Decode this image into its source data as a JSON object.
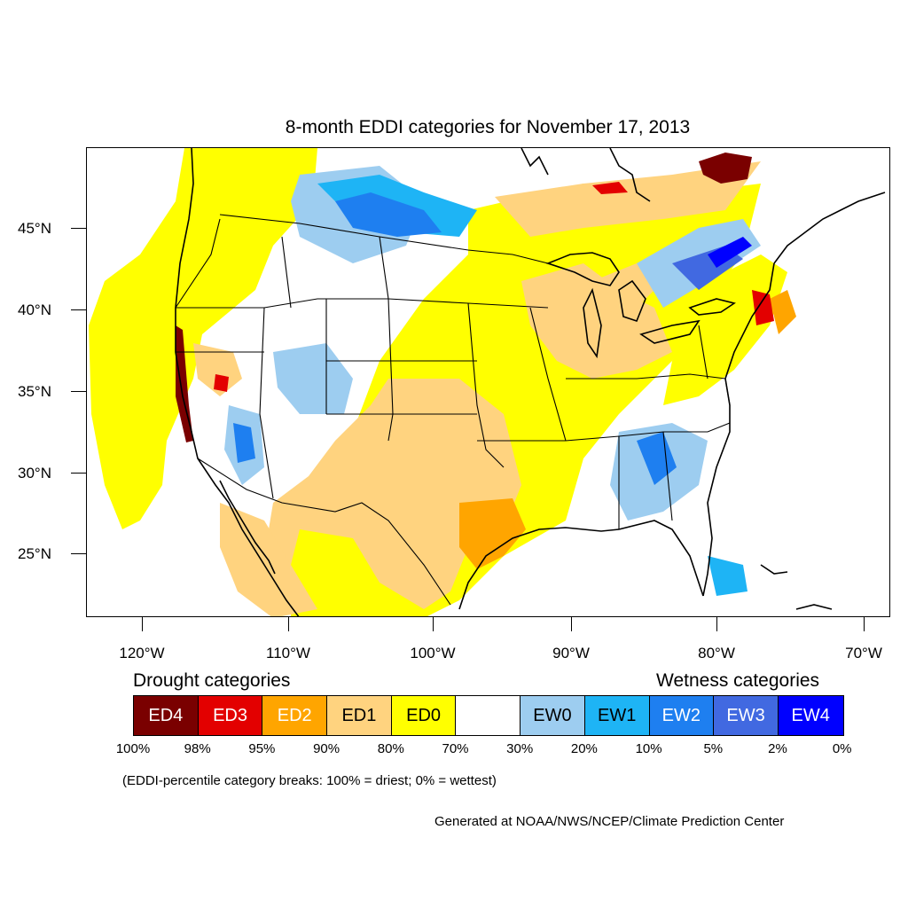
{
  "title": "8-month EDDI categories for November 17, 2013",
  "lat_labels": [
    "45°N",
    "40°N",
    "35°N",
    "30°N",
    "25°N"
  ],
  "lon_labels": [
    "120°W",
    "110°W",
    "100°W",
    "90°W",
    "80°W",
    "70°W"
  ],
  "legend": {
    "drought_heading": "Drought categories",
    "wetness_heading": "Wetness categories",
    "categories": [
      {
        "label": "ED4",
        "color": "#7a0000",
        "text_color": "#ffffff"
      },
      {
        "label": "ED3",
        "color": "#e30000",
        "text_color": "#ffffff"
      },
      {
        "label": "ED2",
        "color": "#ffa500",
        "text_color": "#ffffff"
      },
      {
        "label": "ED1",
        "color": "#ffd37f",
        "text_color": "#000000"
      },
      {
        "label": "ED0",
        "color": "#ffff00",
        "text_color": "#000000"
      },
      {
        "label": "",
        "color": "#ffffff",
        "text_color": "#000000"
      },
      {
        "label": "EW0",
        "color": "#9dcdf0",
        "text_color": "#000000"
      },
      {
        "label": "EW1",
        "color": "#1eb4f5",
        "text_color": "#000000"
      },
      {
        "label": "EW2",
        "color": "#1e7ff0",
        "text_color": "#ffffff"
      },
      {
        "label": "EW3",
        "color": "#4169e1",
        "text_color": "#ffffff"
      },
      {
        "label": "EW4",
        "color": "#0000ff",
        "text_color": "#ffffff"
      }
    ],
    "breaks": [
      "100%",
      "98%",
      "95%",
      "90%",
      "80%",
      "70%",
      "30%",
      "20%",
      "10%",
      "5%",
      "2%",
      "0%"
    ]
  },
  "note": "(EDDI-percentile category breaks: 100% = driest; 0% = wettest)",
  "credit": "Generated at NOAA/NWS/NCEP/Climate Prediction Center"
}
